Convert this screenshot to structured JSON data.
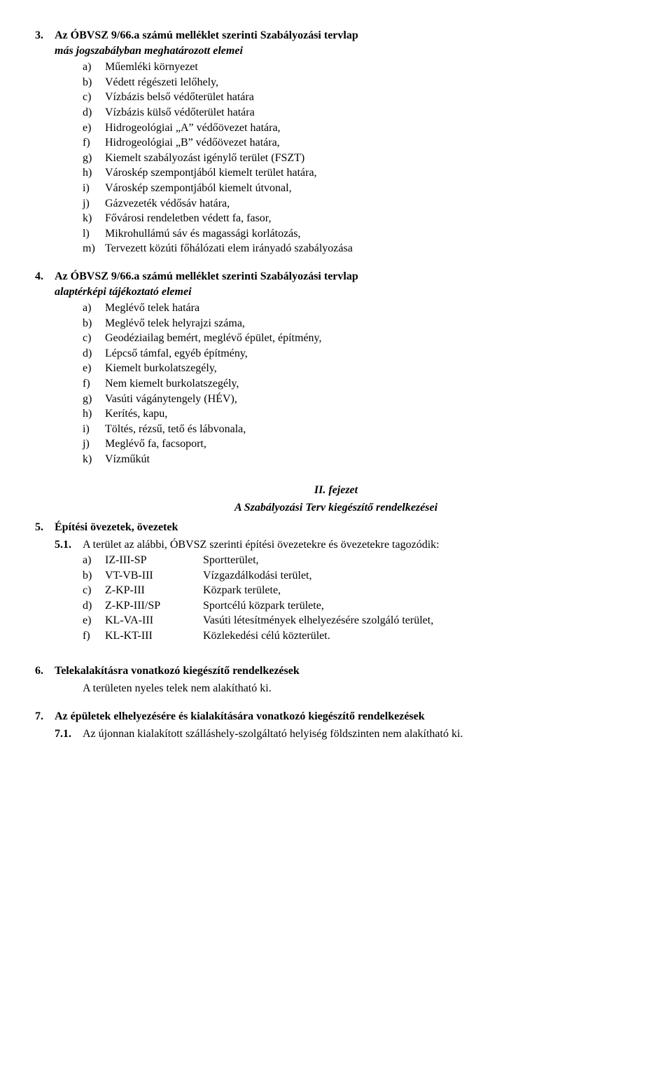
{
  "section3": {
    "num": "3.",
    "title": "Az ÓBVSZ 9/66.a számú melléklet szerinti Szabályozási tervlap",
    "subtitle": "más jogszabályban meghatározott elemei",
    "items": [
      {
        "lab": "a)",
        "txt": "Műemléki környezet"
      },
      {
        "lab": "b)",
        "txt": "Védett régészeti lelőhely,"
      },
      {
        "lab": "c)",
        "txt": "Vízbázis belső védőterület határa"
      },
      {
        "lab": "d)",
        "txt": "Vízbázis külső védőterület határa"
      },
      {
        "lab": "e)",
        "txt": "Hidrogeológiai „A” védőövezet határa,"
      },
      {
        "lab": "f)",
        "txt": "Hidrogeológiai „B” védőövezet határa,"
      },
      {
        "lab": "g)",
        "txt": "Kiemelt szabályozást igénylő terület (FSZT)"
      },
      {
        "lab": "h)",
        "txt": "Városkép szempontjából kiemelt terület határa,"
      },
      {
        "lab": "i)",
        "txt": "Városkép szempontjából kiemelt útvonal,"
      },
      {
        "lab": "j)",
        "txt": "Gázvezeték védősáv határa,"
      },
      {
        "lab": "k)",
        "txt": "Fővárosi rendeletben védett fa, fasor,"
      },
      {
        "lab": "l)",
        "txt": "Mikrohullámú sáv és magassági korlátozás,"
      },
      {
        "lab": "m)",
        "txt": "Tervezett közúti főhálózati elem irányadó szabályozása"
      }
    ]
  },
  "section4": {
    "num": "4.",
    "title": "Az ÓBVSZ 9/66.a számú melléklet szerinti Szabályozási tervlap",
    "subtitle": "alaptérképi tájékoztató elemei",
    "items": [
      {
        "lab": "a)",
        "txt": "Meglévő telek határa"
      },
      {
        "lab": "b)",
        "txt": "Meglévő telek helyrajzi száma,"
      },
      {
        "lab": "c)",
        "txt": "Geodéziailag bemért, meglévő épület, építmény,"
      },
      {
        "lab": "d)",
        "txt": "Lépcső támfal, egyéb építmény,"
      },
      {
        "lab": "e)",
        "txt": "Kiemelt burkolatszegély,"
      },
      {
        "lab": "f)",
        "txt": "Nem kiemelt burkolatszegély,"
      },
      {
        "lab": "g)",
        "txt": "Vasúti vágánytengely (HÉV),"
      },
      {
        "lab": "h)",
        "txt": "Kerítés, kapu,"
      },
      {
        "lab": "i)",
        "txt": "Töltés, rézsű, tető és lábvonala,"
      },
      {
        "lab": "j)",
        "txt": "Meglévő fa, facsoport,"
      },
      {
        "lab": "k)",
        "txt": "Vízműkút"
      }
    ]
  },
  "chapter": {
    "title": "II. fejezet",
    "subtitle": "A Szabályozási Terv kiegészítő rendelkezései"
  },
  "section5": {
    "num": "5.",
    "title": "Építési övezetek, övezetek",
    "sub_num": "5.1.",
    "sub_txt": "A terület az alábbi, ÓBVSZ szerinti építési övezetekre és övezetekre tagozódik:",
    "codes": [
      {
        "lab": "a)",
        "code": "IZ-III-SP",
        "desc": "Sportterület,"
      },
      {
        "lab": "b)",
        "code": "VT-VB-III",
        "desc": "Vízgazdálkodási terület,"
      },
      {
        "lab": "c)",
        "code": "Z-KP-III",
        "desc": "Közpark területe,"
      },
      {
        "lab": "d)",
        "code": "Z-KP-III/SP",
        "desc": "Sportcélú közpark területe,"
      },
      {
        "lab": "e)",
        "code": "KL-VA-III",
        "desc": "Vasúti létesítmények elhelyezésére szolgáló terület,"
      },
      {
        "lab": "f)",
        "code": "KL-KT-III",
        "desc": "Közlekedési célú közterület."
      }
    ]
  },
  "section6": {
    "num": "6.",
    "title": "Telekalakításra vonatkozó kiegészítő rendelkezések",
    "body": "A területen nyeles telek nem alakítható ki."
  },
  "section7": {
    "num": "7.",
    "title": "Az épületek elhelyezésére és kialakítására vonatkozó kiegészítő rendelkezések",
    "sub_num": "7.1.",
    "sub_txt": "Az újonnan kialakított szálláshely-szolgáltató helyiség földszinten nem alakítható ki."
  }
}
